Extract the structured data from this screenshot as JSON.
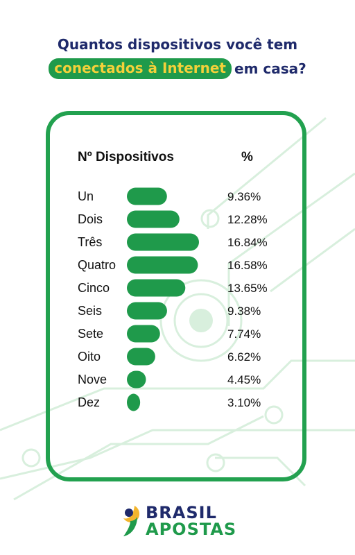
{
  "title": {
    "line1": "Quantos dispositivos você tem",
    "highlight": "conectados à Internet",
    "rest": "em casa?"
  },
  "colors": {
    "bar": "#1f9a4b",
    "frame": "#22a14f",
    "circuit": "#d8efdd",
    "title": "#1f2a6b",
    "highlight_text": "#f4d13a"
  },
  "chart_data": {
    "type": "bar",
    "orientation": "horizontal",
    "xlabel": "Nº Dispositivos",
    "ylabel": "%",
    "categories": [
      "Un",
      "Dois",
      "Três",
      "Quatro",
      "Cinco",
      "Seis",
      "Sete",
      "Oito",
      "Nove",
      "Dez"
    ],
    "values": [
      9.36,
      12.28,
      16.84,
      16.58,
      13.65,
      9.38,
      7.74,
      6.62,
      4.45,
      3.1
    ],
    "labels": [
      "9.36%",
      "12.28%",
      "16.84%",
      "16.58%",
      "13.65%",
      "9.38%",
      "7.74%",
      "6.62%",
      "4.45%",
      "3.10%"
    ]
  },
  "logo": {
    "line1": "BRASIL",
    "line2": "APOSTAS"
  }
}
